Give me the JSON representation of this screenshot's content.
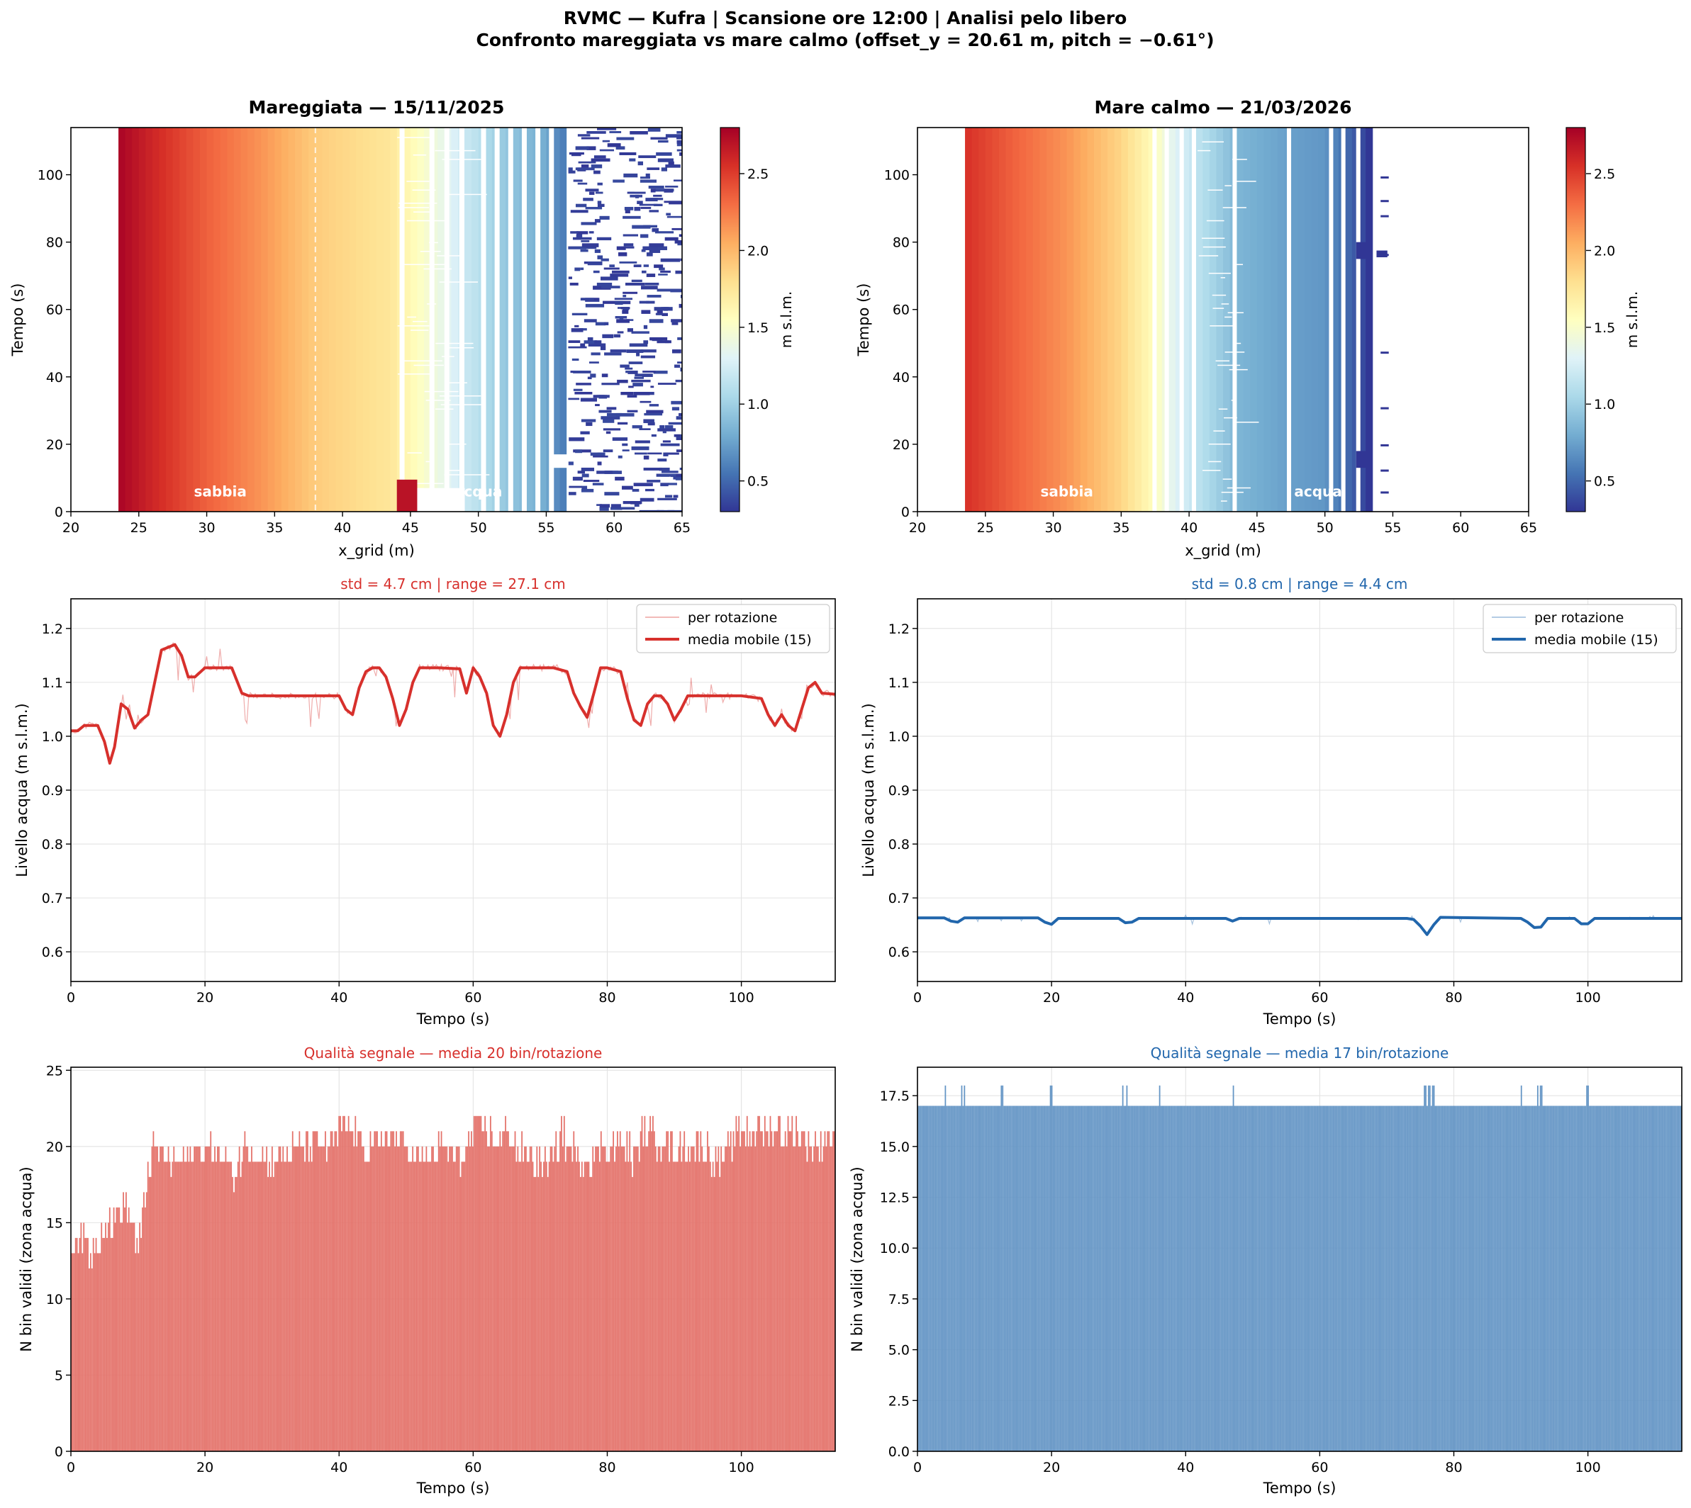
{
  "suptitle": {
    "line1": "RVMC — Kufra  |  Scansione ore 12:00  |  Analisi pelo libero",
    "line2": "Confronto mareggiata vs mare calmo  (offset_y = 20.61 m, pitch = −0.61°)"
  },
  "colors": {
    "storm": "#d7302c",
    "storm_bar": "#e4726a",
    "calm": "#2166ac",
    "calm_bar": "#6495c5"
  },
  "chart_data": [
    {
      "id": "heat_storm",
      "type": "heatmap",
      "title": "Mareggiata  —  15/11/2025",
      "xlabel": "x_grid (m)",
      "ylabel": "Tempo (s)",
      "xlim": [
        20,
        65
      ],
      "ylim": [
        0,
        114
      ],
      "xticks": [
        20,
        25,
        30,
        35,
        40,
        45,
        50,
        55,
        60,
        65
      ],
      "yticks": [
        0,
        20,
        40,
        60,
        80,
        100
      ],
      "colorbar": {
        "label": "m s.l.m.",
        "range": [
          0.3,
          2.8
        ],
        "ticks": [
          "0.5",
          "1.0",
          "1.5",
          "2.0",
          "2.5"
        ],
        "colormap": "RdYlBu_r"
      },
      "x_start": 23.5,
      "x_end": 65,
      "dashed_line_x": 38,
      "annotations": [
        {
          "text": "sabbia",
          "x": 31,
          "y": 6
        },
        {
          "text": "acqua",
          "x": 50,
          "y": 6
        }
      ],
      "profile": [
        [
          23.5,
          2.78
        ],
        [
          26,
          2.6
        ],
        [
          30,
          2.35
        ],
        [
          34,
          2.15
        ],
        [
          38,
          1.9
        ],
        [
          43.5,
          1.75
        ],
        [
          45,
          1.6
        ],
        [
          47,
          1.4
        ],
        [
          49,
          1.2
        ],
        [
          52,
          0.95
        ],
        [
          55,
          0.8
        ],
        [
          56,
          0.6
        ],
        [
          65,
          0.35
        ]
      ],
      "notes": "Mareggiata: water zone x > 43.5 m shows scattered returns"
    },
    {
      "id": "heat_calm",
      "type": "heatmap",
      "title": "Mare calmo  —  21/03/2026",
      "xlabel": "x_grid (m)",
      "ylabel": "Tempo (s)",
      "xlim": [
        20,
        65
      ],
      "ylim": [
        0,
        114
      ],
      "xticks": [
        20,
        25,
        30,
        35,
        40,
        45,
        50,
        55,
        60,
        65
      ],
      "yticks": [
        0,
        20,
        40,
        60,
        80,
        100
      ],
      "colorbar": {
        "label": "m s.l.m.",
        "range": [
          0.3,
          2.8
        ],
        "ticks": [
          "0.5",
          "1.0",
          "1.5",
          "2.0",
          "2.5"
        ],
        "colormap": "RdYlBu_r"
      },
      "x_start": 23.5,
      "x_end": 53.5,
      "annotations": [
        {
          "text": "sabbia",
          "x": 31,
          "y": 6
        },
        {
          "text": "acqua",
          "x": 49.5,
          "y": 6
        }
      ],
      "profile": [
        [
          23.5,
          2.55
        ],
        [
          27,
          2.35
        ],
        [
          31,
          2.15
        ],
        [
          35,
          1.85
        ],
        [
          37.5,
          1.55
        ],
        [
          39,
          1.3
        ],
        [
          41,
          1.1
        ],
        [
          43.5,
          0.85
        ],
        [
          47,
          0.75
        ],
        [
          50,
          0.7
        ],
        [
          53,
          0.35
        ]
      ]
    },
    {
      "id": "level_storm",
      "type": "line",
      "title": "std = 4.7 cm  |  range = 27.1 cm",
      "xlabel": "Tempo (s)",
      "ylabel": "Livello acqua (m s.l.m.)",
      "xlim": [
        0,
        114
      ],
      "ylim": [
        0.545,
        1.255
      ],
      "xticks": [
        0,
        20,
        40,
        60,
        80,
        100
      ],
      "yticks": [
        "0.6",
        "0.7",
        "0.8",
        "0.9",
        "1.0",
        "1.1",
        "1.2"
      ],
      "legend": {
        "position": "top-right",
        "entries": [
          "per rotazione",
          "media mobile (15)"
        ]
      },
      "series": [
        {
          "name": "media mobile (15)",
          "x": [
            0,
            1,
            2,
            4,
            5,
            5.8,
            6.5,
            7.5,
            8.5,
            9.5,
            10.5,
            11.5,
            12.5,
            13.5,
            14.5,
            15.5,
            16.5,
            17.5,
            18.5,
            20,
            22,
            24,
            25.5,
            26.5,
            28,
            30,
            35,
            40,
            41,
            42,
            43,
            44,
            45,
            46,
            47,
            48,
            49,
            50,
            51,
            52,
            53,
            55,
            58,
            59,
            60,
            61,
            62,
            63,
            64,
            65,
            66,
            67,
            68,
            70,
            72,
            74,
            75,
            76,
            77,
            78,
            79,
            80,
            82,
            83,
            84,
            85,
            86,
            87,
            88,
            89,
            90,
            91,
            92,
            95,
            100,
            103,
            104,
            105,
            106,
            107,
            108,
            109,
            110,
            111,
            112,
            114
          ],
          "y": [
            1.01,
            1.01,
            1.02,
            1.02,
            0.99,
            0.95,
            0.98,
            1.06,
            1.05,
            1.015,
            1.03,
            1.04,
            1.1,
            1.16,
            1.165,
            1.17,
            1.15,
            1.11,
            1.11,
            1.127,
            1.127,
            1.127,
            1.08,
            1.075,
            1.075,
            1.075,
            1.075,
            1.075,
            1.05,
            1.04,
            1.09,
            1.12,
            1.127,
            1.127,
            1.11,
            1.07,
            1.02,
            1.05,
            1.1,
            1.127,
            1.127,
            1.127,
            1.125,
            1.08,
            1.127,
            1.11,
            1.08,
            1.02,
            1.0,
            1.04,
            1.1,
            1.127,
            1.127,
            1.127,
            1.127,
            1.12,
            1.08,
            1.055,
            1.035,
            1.08,
            1.127,
            1.127,
            1.12,
            1.07,
            1.03,
            1.02,
            1.06,
            1.075,
            1.075,
            1.06,
            1.03,
            1.05,
            1.075,
            1.075,
            1.075,
            1.07,
            1.04,
            1.02,
            1.04,
            1.02,
            1.01,
            1.05,
            1.09,
            1.1,
            1.08,
            1.078
          ]
        },
        {
          "name": "per rotazione"
        }
      ]
    },
    {
      "id": "level_calm",
      "type": "line",
      "title": "std = 0.8 cm  |  range = 4.4 cm",
      "xlabel": "Tempo (s)",
      "ylabel": "Livello acqua (m s.l.m.)",
      "xlim": [
        0,
        114
      ],
      "ylim": [
        0.545,
        1.255
      ],
      "xticks": [
        0,
        20,
        40,
        60,
        80,
        100
      ],
      "yticks": [
        "0.6",
        "0.7",
        "0.8",
        "0.9",
        "1.0",
        "1.1",
        "1.2"
      ],
      "legend": {
        "position": "top-right",
        "entries": [
          "per rotazione",
          "media mobile (15)"
        ]
      },
      "series": [
        {
          "name": "media mobile (15)",
          "x": [
            0,
            4,
            5,
            6,
            7,
            18,
            19,
            20,
            21,
            30,
            31,
            32,
            33,
            46,
            47,
            48,
            73,
            74,
            75,
            76,
            77,
            78,
            90,
            91,
            92,
            93,
            94,
            98,
            99,
            100,
            101,
            114
          ],
          "y": [
            0.663,
            0.663,
            0.657,
            0.655,
            0.663,
            0.663,
            0.655,
            0.651,
            0.662,
            0.662,
            0.654,
            0.655,
            0.662,
            0.662,
            0.657,
            0.662,
            0.662,
            0.66,
            0.648,
            0.632,
            0.65,
            0.664,
            0.662,
            0.655,
            0.645,
            0.646,
            0.662,
            0.662,
            0.652,
            0.652,
            0.662,
            0.662
          ]
        },
        {
          "name": "per rotazione"
        }
      ]
    },
    {
      "id": "quality_storm",
      "type": "bar",
      "title": "Qualità segnale — media 20 bin/rotazione",
      "xlabel": "Tempo (s)",
      "ylabel": "N bin validi (zona acqua)",
      "xlim": [
        0,
        114
      ],
      "ylim": [
        0,
        25.2
      ],
      "xticks": [
        0,
        20,
        40,
        60,
        80,
        100
      ],
      "yticks": [
        "0",
        "5",
        "10",
        "15",
        "20",
        "25"
      ],
      "mean": 20,
      "profile_x": [
        0,
        2,
        3,
        5,
        6,
        8,
        9,
        10,
        11,
        11.5,
        13,
        15,
        17,
        19,
        21,
        23,
        24,
        26,
        30,
        35,
        39,
        40,
        42,
        44,
        46,
        47,
        50,
        52,
        56,
        58,
        60,
        62,
        64,
        65,
        66,
        69,
        72,
        73,
        74,
        77,
        79,
        80,
        83,
        84,
        85,
        90,
        94,
        97,
        100,
        104,
        108,
        111,
        114
      ],
      "profile_y": [
        14,
        14,
        13,
        15,
        15,
        16,
        15,
        13,
        17,
        19,
        20,
        19,
        19,
        20,
        20,
        19,
        18,
        20,
        19,
        20,
        20,
        21,
        21,
        20,
        20,
        21,
        20,
        19,
        20,
        19,
        21,
        21,
        20,
        21,
        20,
        19,
        19,
        21,
        20,
        19,
        20,
        20,
        20,
        19,
        21,
        20,
        20,
        19,
        21,
        21,
        21,
        20,
        21
      ]
    },
    {
      "id": "quality_calm",
      "type": "bar",
      "title": "Qualità segnale — media 17 bin/rotazione",
      "xlabel": "Tempo (s)",
      "ylabel": "N bin validi (zona acqua)",
      "xlim": [
        0,
        114
      ],
      "ylim": [
        0,
        18.9
      ],
      "xticks": [
        0,
        20,
        40,
        60,
        80,
        100
      ],
      "yticks": [
        "0.0",
        "2.5",
        "5.0",
        "7.5",
        "10.0",
        "12.5",
        "15.0",
        "17.5"
      ],
      "mean": 17,
      "base": 17,
      "spike_times": [
        4,
        6.5,
        7,
        12.5,
        19.8,
        20,
        30.5,
        31.2,
        36,
        47,
        75.5,
        75.8,
        76.1,
        76.4,
        76.7,
        77,
        90,
        92.5,
        92.8,
        93.1,
        99.8,
        100
      ]
    }
  ]
}
